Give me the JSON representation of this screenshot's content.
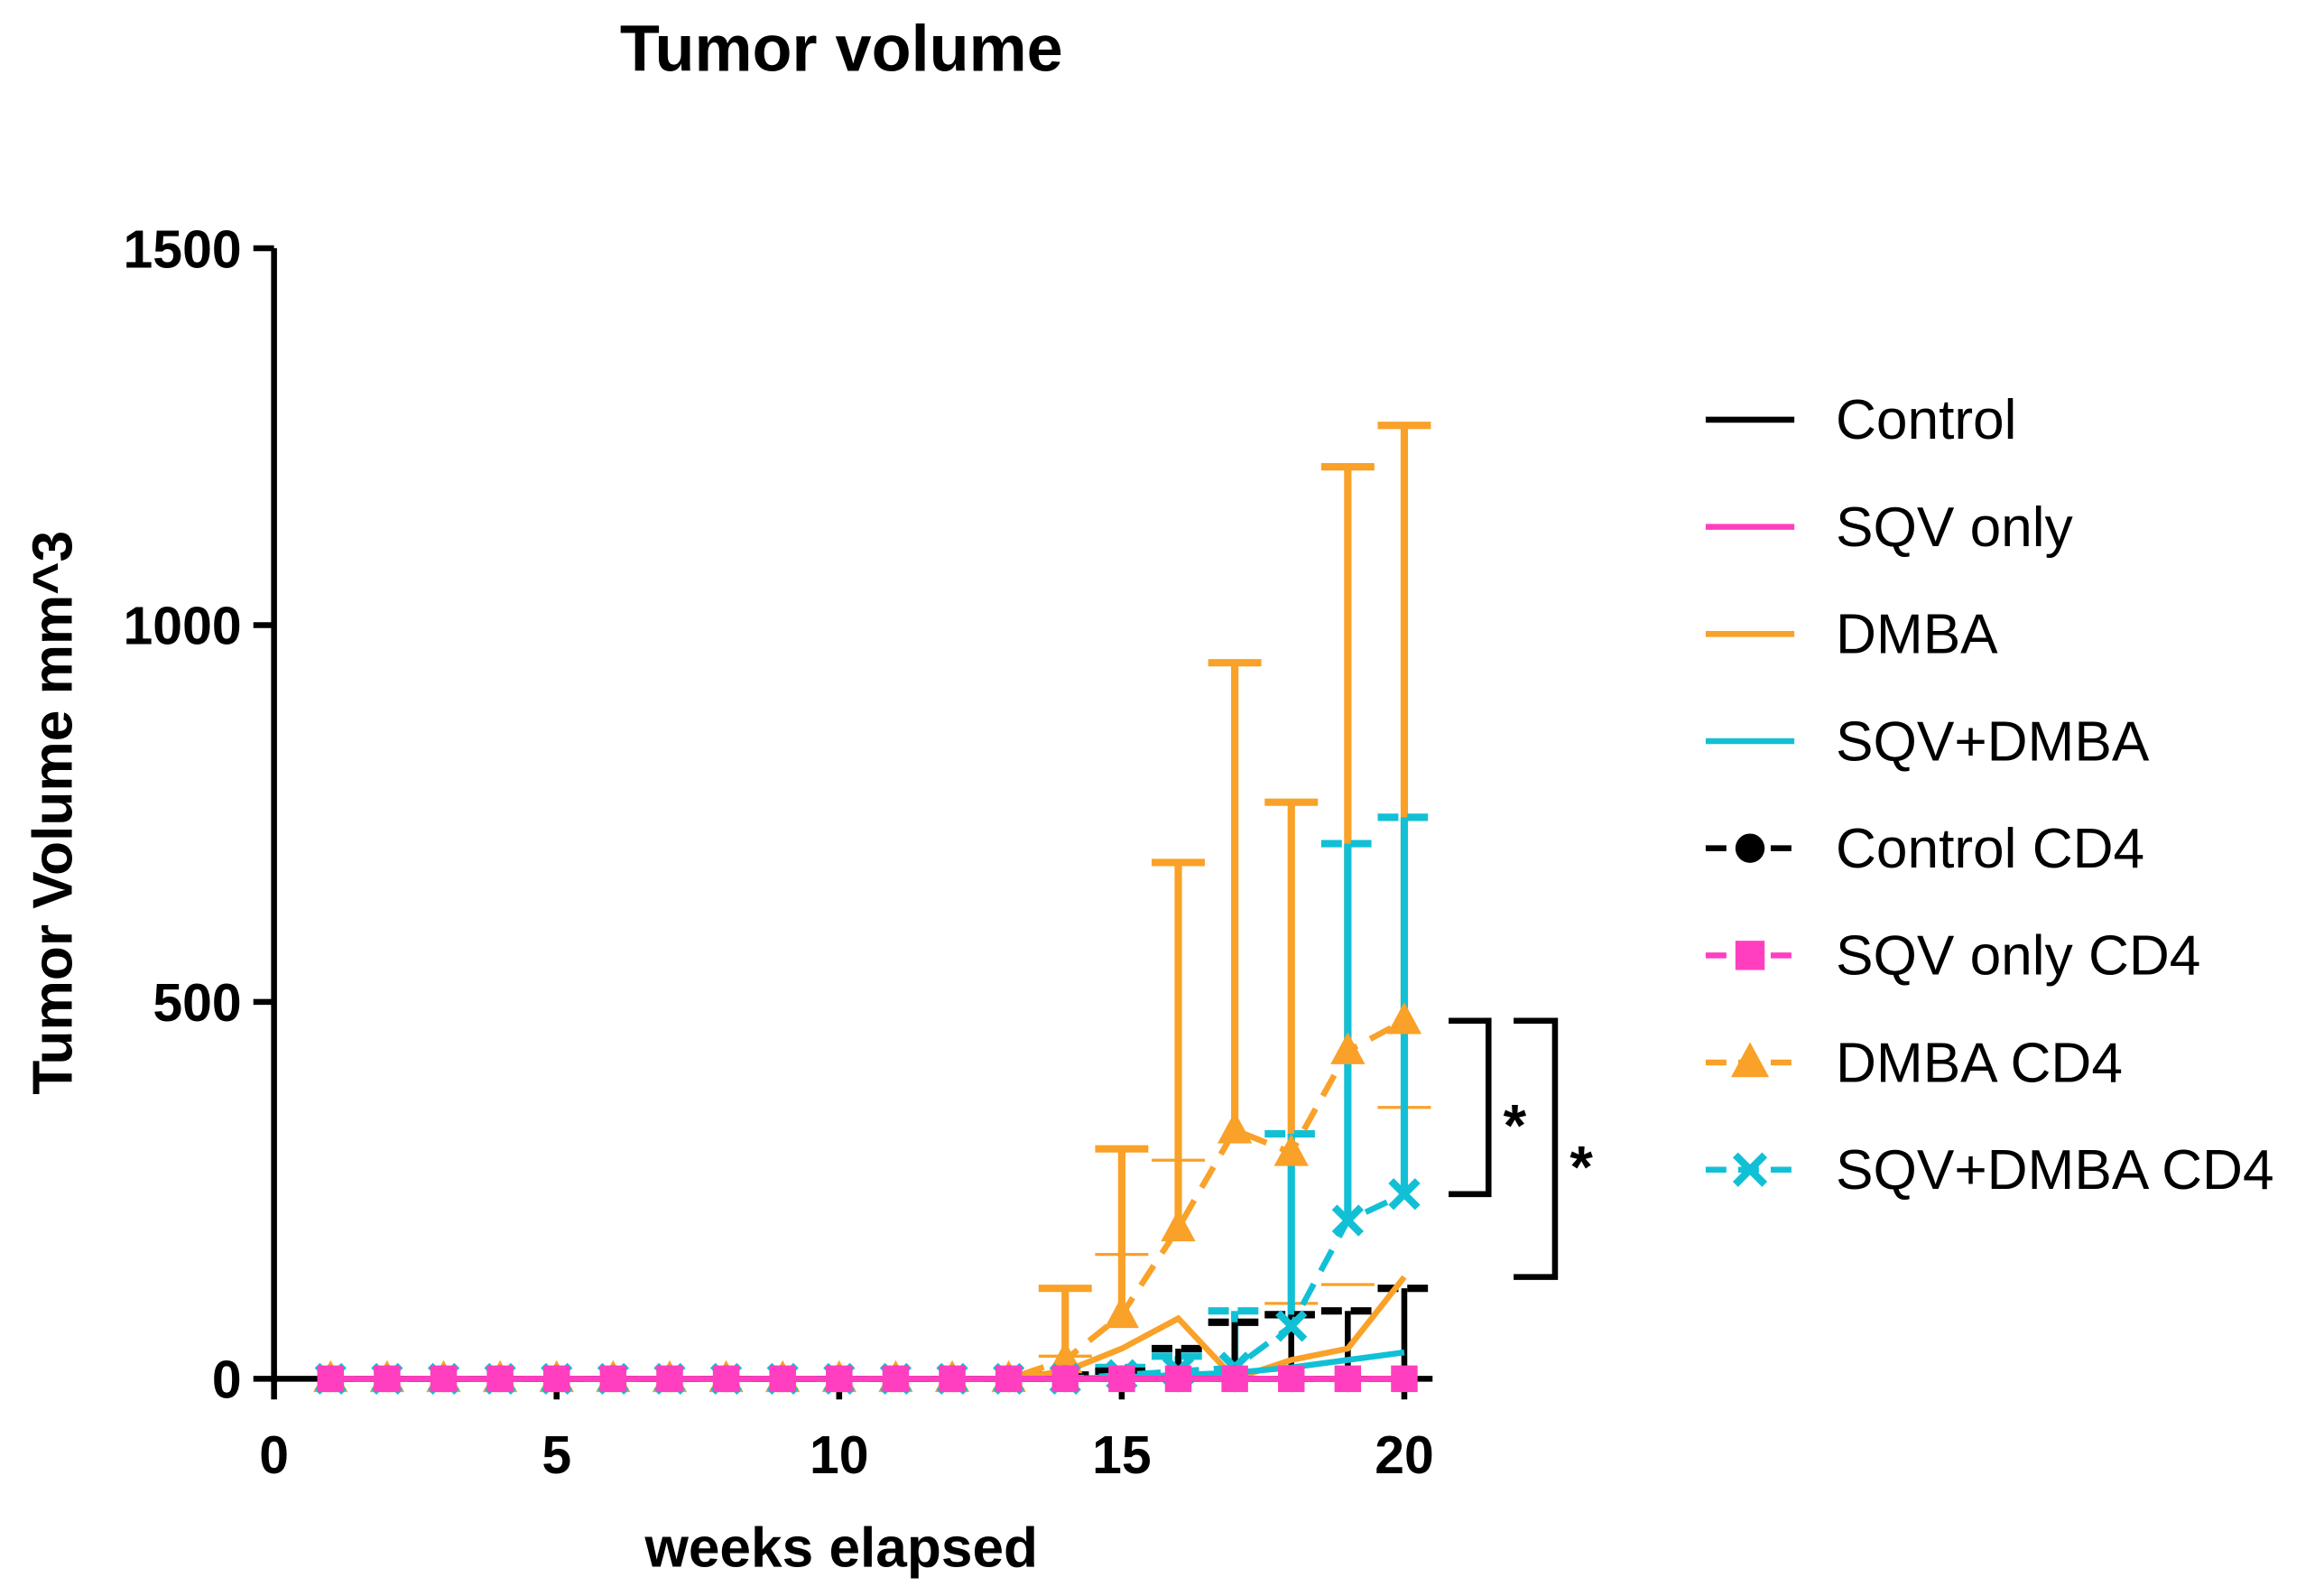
{
  "chart_data": {
    "type": "line",
    "title": "Tumor volume",
    "xlabel": "weeks elapsed",
    "ylabel": "Tumor Volume mm^3",
    "xlim": [
      0,
      20.5
    ],
    "ylim": [
      0,
      1500
    ],
    "xticks": [
      0,
      5,
      10,
      15,
      20
    ],
    "yticks": [
      0,
      500,
      1000,
      1500
    ],
    "x": [
      1,
      2,
      3,
      4,
      5,
      6,
      7,
      8,
      9,
      10,
      11,
      12,
      13,
      14,
      15,
      16,
      17,
      18,
      19,
      20
    ],
    "grid": false,
    "legend_position": "right",
    "series": [
      {
        "name": "Control",
        "color": "#000000",
        "dash": false,
        "marker": "none",
        "values": [
          0,
          0,
          0,
          0,
          0,
          0,
          0,
          0,
          0,
          0,
          0,
          0,
          0,
          0,
          0,
          0,
          0,
          0,
          0,
          0
        ],
        "err": null
      },
      {
        "name": "SQV only",
        "color": "#ff3fbf",
        "dash": false,
        "marker": "none",
        "values": [
          0,
          0,
          0,
          0,
          0,
          0,
          0,
          0,
          0,
          0,
          0,
          0,
          0,
          0,
          0,
          0,
          0,
          0,
          0,
          0
        ],
        "err": null
      },
      {
        "name": "DMBA",
        "color": "#f9a128",
        "dash": false,
        "marker": "none",
        "thin_err": true,
        "values": [
          0,
          0,
          0,
          0,
          0,
          0,
          0,
          0,
          0,
          0,
          0,
          0,
          0,
          10,
          40,
          80,
          0,
          25,
          40,
          135
        ],
        "err": [
          0,
          0,
          0,
          0,
          0,
          0,
          0,
          0,
          0,
          0,
          0,
          0,
          0,
          20,
          125,
          210,
          0,
          75,
          85,
          225
        ]
      },
      {
        "name": "SQV+DMBA",
        "color": "#12c0d6",
        "dash": false,
        "marker": "none",
        "values": [
          0,
          0,
          0,
          0,
          0,
          0,
          0,
          0,
          0,
          0,
          0,
          0,
          0,
          0,
          2,
          5,
          8,
          15,
          25,
          35
        ],
        "err": null
      },
      {
        "name": "Control CD4",
        "color": "#000000",
        "dash": true,
        "marker": "circle",
        "values": [
          0,
          0,
          0,
          0,
          0,
          0,
          0,
          0,
          0,
          0,
          0,
          0,
          0,
          0,
          0,
          0,
          0,
          0,
          0,
          0
        ],
        "err": [
          0,
          0,
          0,
          0,
          0,
          0,
          0,
          0,
          0,
          0,
          0,
          0,
          0,
          5,
          10,
          40,
          75,
          85,
          90,
          120
        ]
      },
      {
        "name": "SQV only CD4",
        "color": "#ff3fbf",
        "dash": true,
        "marker": "square",
        "values": [
          0,
          0,
          0,
          0,
          0,
          0,
          0,
          0,
          0,
          0,
          0,
          0,
          0,
          0,
          0,
          0,
          0,
          0,
          0,
          0
        ],
        "err": null
      },
      {
        "name": "DMBA CD4",
        "color": "#f9a128",
        "dash": true,
        "marker": "triangle",
        "values": [
          0,
          0,
          0,
          0,
          0,
          0,
          0,
          0,
          0,
          0,
          0,
          0,
          0,
          25,
          85,
          200,
          330,
          300,
          435,
          475
        ],
        "err": [
          0,
          0,
          0,
          0,
          0,
          0,
          0,
          0,
          0,
          0,
          0,
          0,
          0,
          95,
          220,
          485,
          620,
          465,
          775,
          790
        ]
      },
      {
        "name": "SQV+DMBA CD4",
        "color": "#12c0d6",
        "dash": true,
        "marker": "x",
        "values": [
          0,
          0,
          0,
          0,
          0,
          0,
          0,
          0,
          0,
          0,
          0,
          0,
          0,
          0,
          5,
          10,
          15,
          70,
          210,
          245
        ],
        "err": [
          0,
          0,
          0,
          0,
          0,
          0,
          0,
          0,
          0,
          0,
          0,
          0,
          0,
          0,
          10,
          20,
          75,
          255,
          500,
          500
        ]
      }
    ],
    "annotations": [
      {
        "text": "*",
        "type": "bracket",
        "from": 475,
        "to": 245,
        "x": 20
      },
      {
        "text": "*",
        "type": "bracket",
        "from": 475,
        "to": 135,
        "x": 20
      }
    ]
  }
}
